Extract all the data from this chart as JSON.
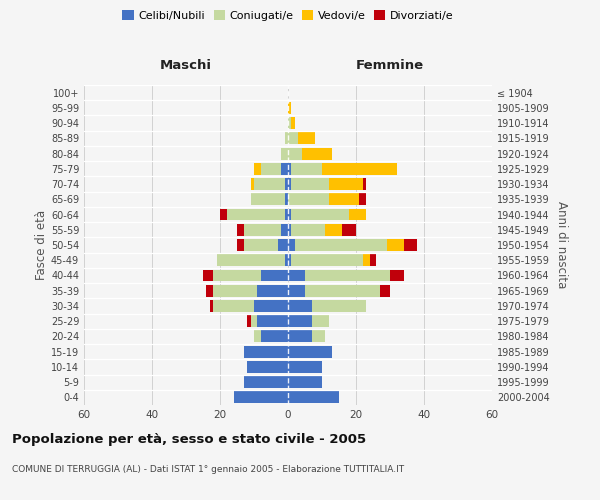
{
  "age_groups": [
    "0-4",
    "5-9",
    "10-14",
    "15-19",
    "20-24",
    "25-29",
    "30-34",
    "35-39",
    "40-44",
    "45-49",
    "50-54",
    "55-59",
    "60-64",
    "65-69",
    "70-74",
    "75-79",
    "80-84",
    "85-89",
    "90-94",
    "95-99",
    "100+"
  ],
  "birth_years": [
    "2000-2004",
    "1995-1999",
    "1990-1994",
    "1985-1989",
    "1980-1984",
    "1975-1979",
    "1970-1974",
    "1965-1969",
    "1960-1964",
    "1955-1959",
    "1950-1954",
    "1945-1949",
    "1940-1944",
    "1935-1939",
    "1930-1934",
    "1925-1929",
    "1920-1924",
    "1915-1919",
    "1910-1914",
    "1905-1909",
    "≤ 1904"
  ],
  "maschi": {
    "celibi": [
      16,
      13,
      12,
      13,
      8,
      9,
      10,
      9,
      8,
      1,
      3,
      2,
      1,
      1,
      1,
      2,
      0,
      0,
      0,
      0,
      0
    ],
    "coniugati": [
      0,
      0,
      0,
      0,
      2,
      2,
      12,
      13,
      14,
      20,
      10,
      11,
      17,
      10,
      9,
      6,
      2,
      1,
      0,
      0,
      0
    ],
    "vedovi": [
      0,
      0,
      0,
      0,
      0,
      0,
      0,
      0,
      0,
      0,
      0,
      0,
      0,
      0,
      1,
      2,
      0,
      0,
      0,
      0,
      0
    ],
    "divorziati": [
      0,
      0,
      0,
      0,
      0,
      1,
      1,
      2,
      3,
      0,
      2,
      2,
      2,
      0,
      0,
      0,
      0,
      0,
      0,
      0,
      0
    ]
  },
  "femmine": {
    "nubili": [
      15,
      10,
      10,
      13,
      7,
      7,
      7,
      5,
      5,
      1,
      2,
      1,
      1,
      0,
      1,
      1,
      0,
      0,
      0,
      0,
      0
    ],
    "coniugate": [
      0,
      0,
      0,
      0,
      4,
      5,
      16,
      22,
      25,
      21,
      27,
      10,
      17,
      12,
      11,
      9,
      4,
      3,
      1,
      0,
      0
    ],
    "vedove": [
      0,
      0,
      0,
      0,
      0,
      0,
      0,
      0,
      0,
      2,
      5,
      5,
      5,
      9,
      10,
      22,
      9,
      5,
      1,
      1,
      0
    ],
    "divorziate": [
      0,
      0,
      0,
      0,
      0,
      0,
      0,
      3,
      4,
      2,
      4,
      4,
      0,
      2,
      1,
      0,
      0,
      0,
      0,
      0,
      0
    ]
  },
  "colors": {
    "celibi_nubili": "#4472c4",
    "coniugati_e": "#c5d9a0",
    "vedovi_e": "#ffc000",
    "divorziati_e": "#c0000b"
  },
  "xlim": 60,
  "title": "Popolazione per età, sesso e stato civile - 2005",
  "subtitle": "COMUNE DI TERRUGGIA (AL) - Dati ISTAT 1° gennaio 2005 - Elaborazione TUTTITALIA.IT",
  "ylabel_left": "Fasce di età",
  "ylabel_right": "Anni di nascita",
  "xlabel_left": "Maschi",
  "xlabel_right": "Femmine",
  "background_color": "#f5f5f5",
  "grid_color": "#cccccc"
}
